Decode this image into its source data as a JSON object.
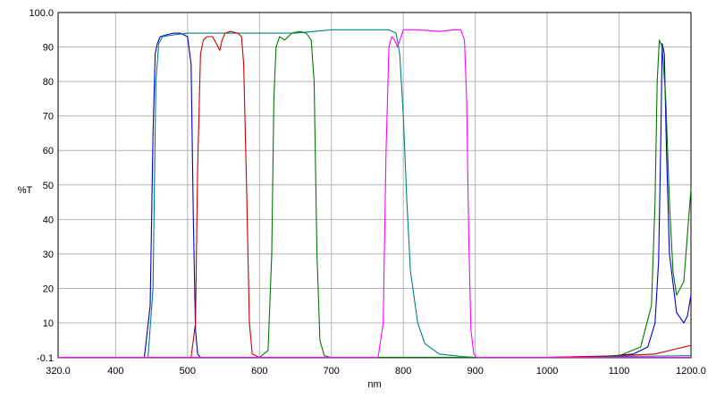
{
  "chart_data": {
    "type": "line",
    "xlabel": "nm",
    "ylabel": "%T",
    "xlim": [
      320.0,
      1200.0
    ],
    "ylim": [
      -0.1,
      100.0
    ],
    "x_ticks": [
      "320.0",
      "400",
      "500",
      "600",
      "700",
      "800",
      "900",
      "1000",
      "1100",
      "1200.0"
    ],
    "x_tick_values": [
      320,
      400,
      500,
      600,
      700,
      800,
      900,
      1000,
      1100,
      1200
    ],
    "y_ticks": [
      "-0.1",
      "10",
      "20",
      "30",
      "40",
      "50",
      "60",
      "70",
      "80",
      "90",
      "100.0"
    ],
    "y_tick_values": [
      -0.1,
      10,
      20,
      30,
      40,
      50,
      60,
      70,
      80,
      90,
      100
    ],
    "grid": true,
    "legend": "none",
    "series": [
      {
        "color": "#0000cc",
        "x": [
          320,
          440,
          448,
          452,
          455,
          458,
          462,
          470,
          480,
          490,
          500,
          505,
          508,
          511,
          514,
          518,
          525,
          600,
          800,
          1000,
          1080,
          1120,
          1140,
          1150,
          1155,
          1158,
          1160,
          1163,
          1166,
          1170,
          1180,
          1190,
          1195,
          1200
        ],
        "y": [
          0,
          0,
          15,
          65,
          88,
          91,
          93,
          93.5,
          94,
          94,
          93,
          85,
          40,
          8,
          1,
          0,
          0,
          0,
          0,
          0,
          0.3,
          1,
          3,
          10,
          28,
          62,
          91,
          88,
          60,
          30,
          13,
          10,
          12,
          18
        ]
      },
      {
        "color": "#008080",
        "x": [
          320,
          445,
          452,
          456,
          460,
          465,
          480,
          500,
          550,
          600,
          650,
          700,
          750,
          780,
          790,
          795,
          800,
          805,
          810,
          820,
          830,
          850,
          880,
          900,
          1000,
          1100,
          1200
        ],
        "y": [
          0,
          0,
          20,
          80,
          91,
          93,
          93.5,
          94,
          94,
          94,
          94,
          95,
          95,
          95,
          94,
          88,
          70,
          45,
          25,
          10,
          4,
          1,
          0.3,
          0,
          0,
          0.3,
          0.5
        ]
      },
      {
        "color": "#cc0000",
        "x": [
          320,
          505,
          511,
          514,
          518,
          522,
          527,
          535,
          540,
          545,
          548,
          552,
          560,
          570,
          575,
          578,
          582,
          586,
          590,
          600,
          700,
          1000,
          1100,
          1150,
          1180,
          1200
        ],
        "y": [
          0,
          0,
          10,
          55,
          88,
          92,
          93,
          93,
          91,
          89,
          92,
          94,
          94.5,
          94,
          93,
          85,
          50,
          10,
          1,
          0,
          0,
          0,
          0.5,
          1,
          2.5,
          3.5
        ]
      },
      {
        "color": "#007700",
        "x": [
          320,
          600,
          612,
          617,
          620,
          623,
          628,
          635,
          645,
          655,
          665,
          672,
          676,
          680,
          684,
          690,
          700,
          900,
          1050,
          1100,
          1130,
          1145,
          1150,
          1153,
          1156,
          1160,
          1165,
          1170,
          1175,
          1180,
          1190,
          1200
        ],
        "y": [
          0,
          0,
          2,
          30,
          75,
          90,
          93,
          92,
          94,
          94.5,
          94,
          92,
          80,
          30,
          5,
          0.5,
          0,
          0,
          0,
          0.5,
          3,
          15,
          45,
          80,
          92,
          90,
          75,
          45,
          25,
          18,
          22,
          49
        ]
      },
      {
        "color": "#ff00ff",
        "x": [
          320,
          765,
          772,
          776,
          780,
          784,
          788,
          792,
          800,
          820,
          850,
          870,
          880,
          885,
          888,
          891,
          894,
          898,
          902,
          910,
          1000,
          1200
        ],
        "y": [
          0,
          0,
          10,
          60,
          90,
          93,
          92,
          90,
          95,
          95,
          94.5,
          95,
          95,
          92,
          75,
          35,
          8,
          1,
          0,
          0,
          0,
          0
        ]
      }
    ]
  }
}
